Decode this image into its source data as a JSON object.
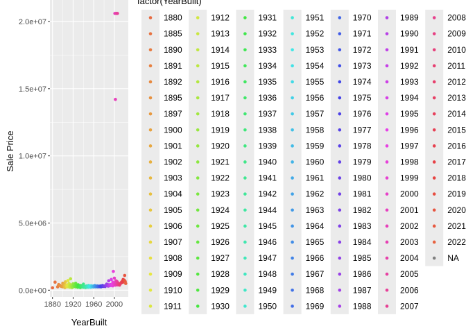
{
  "chart_data": {
    "type": "scatter",
    "xlabel": "YearBuilt",
    "ylabel": "Sale Price",
    "xlim": [
      1875,
      2027
    ],
    "ylim": [
      -500000,
      21600000
    ],
    "x_ticks": [
      1880,
      1920,
      1960,
      2000
    ],
    "x_tick_labels": [
      "1880",
      "1920",
      "1960",
      "2000"
    ],
    "y_ticks": [
      0,
      5000000,
      10000000,
      15000000,
      20000000
    ],
    "y_tick_labels": [
      "0.0e+00",
      "5.0e+06",
      "1.0e+07",
      "1.5e+07",
      "2.0e+07"
    ],
    "grid": true,
    "legend_title": "factor(YearBuilt)",
    "legend_position": "right",
    "legend_keys": [
      "1880",
      "1885",
      "1890",
      "1891",
      "1892",
      "1895",
      "1897",
      "1900",
      "1901",
      "1902",
      "1903",
      "1904",
      "1905",
      "1906",
      "1907",
      "1908",
      "1909",
      "1910",
      "1911",
      "1912",
      "1913",
      "1914",
      "1915",
      "1916",
      "1917",
      "1918",
      "1919",
      "1920",
      "1921",
      "1922",
      "1923",
      "1924",
      "1925",
      "1926",
      "1927",
      "1928",
      "1929",
      "1930",
      "1931",
      "1932",
      "1933",
      "1934",
      "1935",
      "1936",
      "1937",
      "1938",
      "1939",
      "1940",
      "1941",
      "1942",
      "1944",
      "1945",
      "1946",
      "1947",
      "1948",
      "1949",
      "1950",
      "1951",
      "1952",
      "1953",
      "1954",
      "1955",
      "1956",
      "1957",
      "1958",
      "1959",
      "1960",
      "1961",
      "1962",
      "1963",
      "1964",
      "1965",
      "1966",
      "1967",
      "1968",
      "1969",
      "1970",
      "1971",
      "1972",
      "1973",
      "1974",
      "1975",
      "1976",
      "1977",
      "1978",
      "1979",
      "1980",
      "1981",
      "1982",
      "1983",
      "1984",
      "1985",
      "1986",
      "1987",
      "1988",
      "1989",
      "1990",
      "1991",
      "1992",
      "1993",
      "1994",
      "1995",
      "1996",
      "1997",
      "1998",
      "1999",
      "2000",
      "2001",
      "2002",
      "2003",
      "2004",
      "2005",
      "2006",
      "2007",
      "2008",
      "2009",
      "2010",
      "2011",
      "2012",
      "2013",
      "2014",
      "2015",
      "2016",
      "2017",
      "2018",
      "2019",
      "2020",
      "2021",
      "2022",
      "NA"
    ],
    "points": [
      {
        "x": 1880,
        "y": 180000
      },
      {
        "x": 1885,
        "y": 600000
      },
      {
        "x": 1890,
        "y": 250000
      },
      {
        "x": 1891,
        "y": 300000
      },
      {
        "x": 1892,
        "y": 420000
      },
      {
        "x": 1895,
        "y": 350000
      },
      {
        "x": 1897,
        "y": 280000
      },
      {
        "x": 1900,
        "y": 520000
      },
      {
        "x": 1900,
        "y": 250000
      },
      {
        "x": 1901,
        "y": 380000
      },
      {
        "x": 1902,
        "y": 450000
      },
      {
        "x": 1903,
        "y": 300000
      },
      {
        "x": 1904,
        "y": 200000
      },
      {
        "x": 1905,
        "y": 620000
      },
      {
        "x": 1906,
        "y": 400000
      },
      {
        "x": 1907,
        "y": 330000
      },
      {
        "x": 1908,
        "y": 250000
      },
      {
        "x": 1909,
        "y": 380000
      },
      {
        "x": 1910,
        "y": 720000
      },
      {
        "x": 1910,
        "y": 320000
      },
      {
        "x": 1911,
        "y": 250000
      },
      {
        "x": 1912,
        "y": 500000
      },
      {
        "x": 1913,
        "y": 300000
      },
      {
        "x": 1914,
        "y": 220000
      },
      {
        "x": 1915,
        "y": 850000
      },
      {
        "x": 1915,
        "y": 400000
      },
      {
        "x": 1916,
        "y": 350000
      },
      {
        "x": 1917,
        "y": 300000
      },
      {
        "x": 1918,
        "y": 200000
      },
      {
        "x": 1919,
        "y": 280000
      },
      {
        "x": 1920,
        "y": 480000
      },
      {
        "x": 1920,
        "y": 250000
      },
      {
        "x": 1921,
        "y": 330000
      },
      {
        "x": 1922,
        "y": 400000
      },
      {
        "x": 1923,
        "y": 280000
      },
      {
        "x": 1924,
        "y": 300000
      },
      {
        "x": 1925,
        "y": 520000
      },
      {
        "x": 1925,
        "y": 250000
      },
      {
        "x": 1926,
        "y": 420000
      },
      {
        "x": 1927,
        "y": 300000
      },
      {
        "x": 1928,
        "y": 350000
      },
      {
        "x": 1929,
        "y": 220000
      },
      {
        "x": 1930,
        "y": 400000
      },
      {
        "x": 1931,
        "y": 280000
      },
      {
        "x": 1932,
        "y": 250000
      },
      {
        "x": 1933,
        "y": 300000
      },
      {
        "x": 1934,
        "y": 200000
      },
      {
        "x": 1935,
        "y": 350000
      },
      {
        "x": 1936,
        "y": 280000
      },
      {
        "x": 1937,
        "y": 300000
      },
      {
        "x": 1938,
        "y": 250000
      },
      {
        "x": 1939,
        "y": 320000
      },
      {
        "x": 1940,
        "y": 450000
      },
      {
        "x": 1940,
        "y": 220000
      },
      {
        "x": 1941,
        "y": 300000
      },
      {
        "x": 1942,
        "y": 250000
      },
      {
        "x": 1944,
        "y": 200000
      },
      {
        "x": 1945,
        "y": 280000
      },
      {
        "x": 1946,
        "y": 320000
      },
      {
        "x": 1947,
        "y": 250000
      },
      {
        "x": 1948,
        "y": 300000
      },
      {
        "x": 1949,
        "y": 220000
      },
      {
        "x": 1950,
        "y": 350000
      },
      {
        "x": 1951,
        "y": 280000
      },
      {
        "x": 1952,
        "y": 250000
      },
      {
        "x": 1953,
        "y": 300000
      },
      {
        "x": 1954,
        "y": 220000
      },
      {
        "x": 1955,
        "y": 330000
      },
      {
        "x": 1956,
        "y": 270000
      },
      {
        "x": 1957,
        "y": 250000
      },
      {
        "x": 1958,
        "y": 280000
      },
      {
        "x": 1959,
        "y": 310000
      },
      {
        "x": 1960,
        "y": 240000
      },
      {
        "x": 1961,
        "y": 300000
      },
      {
        "x": 1962,
        "y": 350000
      },
      {
        "x": 1963,
        "y": 270000
      },
      {
        "x": 1964,
        "y": 250000
      },
      {
        "x": 1965,
        "y": 300000
      },
      {
        "x": 1966,
        "y": 280000
      },
      {
        "x": 1967,
        "y": 320000
      },
      {
        "x": 1968,
        "y": 250000
      },
      {
        "x": 1969,
        "y": 300000
      },
      {
        "x": 1970,
        "y": 280000
      },
      {
        "x": 1971,
        "y": 260000
      },
      {
        "x": 1972,
        "y": 300000
      },
      {
        "x": 1973,
        "y": 320000
      },
      {
        "x": 1974,
        "y": 250000
      },
      {
        "x": 1975,
        "y": 300000
      },
      {
        "x": 1976,
        "y": 280000
      },
      {
        "x": 1977,
        "y": 350000
      },
      {
        "x": 1978,
        "y": 300000
      },
      {
        "x": 1979,
        "y": 280000
      },
      {
        "x": 1980,
        "y": 320000
      },
      {
        "x": 1981,
        "y": 300000
      },
      {
        "x": 1982,
        "y": 270000
      },
      {
        "x": 1983,
        "y": 330000
      },
      {
        "x": 1984,
        "y": 350000
      },
      {
        "x": 1985,
        "y": 450000
      },
      {
        "x": 1986,
        "y": 380000
      },
      {
        "x": 1987,
        "y": 420000
      },
      {
        "x": 1988,
        "y": 300000
      },
      {
        "x": 1989,
        "y": 700000
      },
      {
        "x": 1989,
        "y": 350000
      },
      {
        "x": 1990,
        "y": 400000
      },
      {
        "x": 1991,
        "y": 330000
      },
      {
        "x": 1992,
        "y": 380000
      },
      {
        "x": 1993,
        "y": 420000
      },
      {
        "x": 1994,
        "y": 800000
      },
      {
        "x": 1994,
        "y": 350000
      },
      {
        "x": 1995,
        "y": 400000
      },
      {
        "x": 1996,
        "y": 450000
      },
      {
        "x": 1997,
        "y": 600000
      },
      {
        "x": 1997,
        "y": 320000
      },
      {
        "x": 1998,
        "y": 1400000
      },
      {
        "x": 1998,
        "y": 400000
      },
      {
        "x": 1999,
        "y": 550000
      },
      {
        "x": 2000,
        "y": 900000
      },
      {
        "x": 2000,
        "y": 420000
      },
      {
        "x": 2001,
        "y": 20600000
      },
      {
        "x": 2001,
        "y": 500000
      },
      {
        "x": 2002,
        "y": 14200000
      },
      {
        "x": 2002,
        "y": 380000
      },
      {
        "x": 2003,
        "y": 20600000
      },
      {
        "x": 2003,
        "y": 700000
      },
      {
        "x": 2004,
        "y": 20600000
      },
      {
        "x": 2004,
        "y": 450000
      },
      {
        "x": 2005,
        "y": 20600000
      },
      {
        "x": 2005,
        "y": 650000
      },
      {
        "x": 2006,
        "y": 20600000
      },
      {
        "x": 2006,
        "y": 400000
      },
      {
        "x": 2007,
        "y": 550000
      },
      {
        "x": 2008,
        "y": 480000
      },
      {
        "x": 2009,
        "y": 420000
      },
      {
        "x": 2010,
        "y": 380000
      },
      {
        "x": 2011,
        "y": 450000
      },
      {
        "x": 2012,
        "y": 500000
      },
      {
        "x": 2013,
        "y": 550000
      },
      {
        "x": 2014,
        "y": 600000
      },
      {
        "x": 2015,
        "y": 650000
      },
      {
        "x": 2016,
        "y": 580000
      },
      {
        "x": 2017,
        "y": 800000
      },
      {
        "x": 2018,
        "y": 700000
      },
      {
        "x": 2019,
        "y": 750000
      },
      {
        "x": 2020,
        "y": 1100000
      },
      {
        "x": 2021,
        "y": 650000
      },
      {
        "x": 2022,
        "y": 500000
      }
    ]
  }
}
